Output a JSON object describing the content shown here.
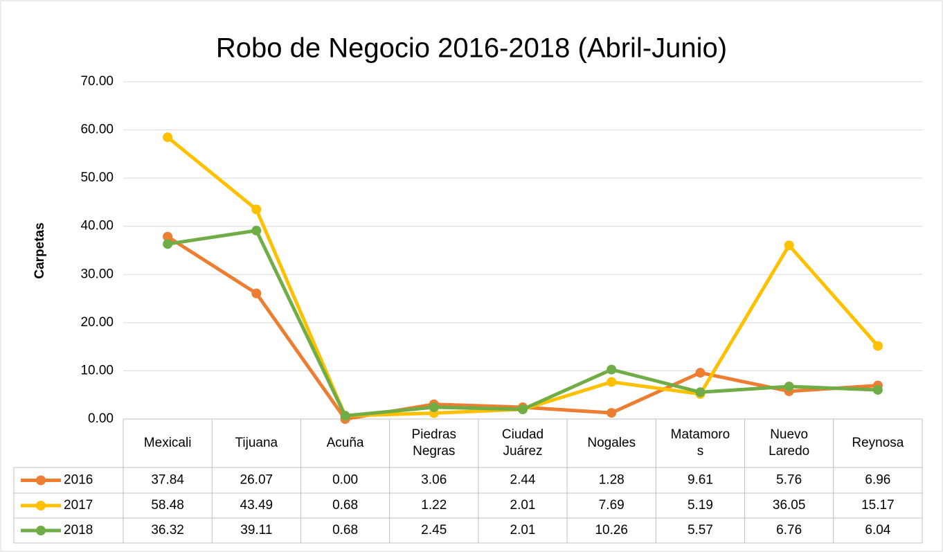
{
  "chart_data": {
    "type": "line",
    "title": "Robo de Negocio 2016-2018 (Abril-Junio)",
    "y_label": "Carpetas",
    "categories": [
      "Mexicali",
      "Tijuana",
      "Acuña",
      "Piedras Negras",
      "Ciudad Juárez",
      "Nogales",
      "Matamoros",
      "Nuevo Laredo",
      "Reynosa"
    ],
    "series": [
      {
        "name": "2016",
        "color": "#ed7d31",
        "values": [
          37.84,
          26.07,
          0,
          3.06,
          2.44,
          1.28,
          9.61,
          5.76,
          6.96
        ],
        "value_labels": [
          "37.84",
          "26.07",
          "0.00",
          "3.06",
          "2.44",
          "1.28",
          "9.61",
          "5.76",
          "6.96"
        ]
      },
      {
        "name": "2017",
        "color": "#ffc000",
        "values": [
          58.48,
          43.49,
          0.68,
          1.22,
          2.01,
          7.69,
          5.19,
          36.05,
          15.17
        ],
        "value_labels": [
          "58.48",
          "43.49",
          "0.68",
          "1.22",
          "2.01",
          "7.69",
          "5.19",
          "36.05",
          "15.17"
        ]
      },
      {
        "name": "2018",
        "color": "#70ad47",
        "values": [
          36.32,
          39.11,
          0.68,
          2.45,
          2.01,
          10.26,
          5.57,
          6.76,
          6.04
        ],
        "value_labels": [
          "36.32",
          "39.11",
          "0.68",
          "2.45",
          "2.01",
          "10.26",
          "5.57",
          "6.76",
          "6.04"
        ]
      }
    ],
    "ylim": [
      0,
      70
    ],
    "yticks": [
      {
        "value": 0,
        "label": "0.00"
      },
      {
        "value": 10,
        "label": "10.00"
      },
      {
        "value": 20,
        "label": "20.00"
      },
      {
        "value": 30,
        "label": "30.00"
      },
      {
        "value": 40,
        "label": "40.00"
      },
      {
        "value": 50,
        "label": "50.00"
      },
      {
        "value": 60,
        "label": "60.00"
      },
      {
        "value": 70,
        "label": "70.00"
      }
    ],
    "grid": true,
    "legend": "table"
  }
}
